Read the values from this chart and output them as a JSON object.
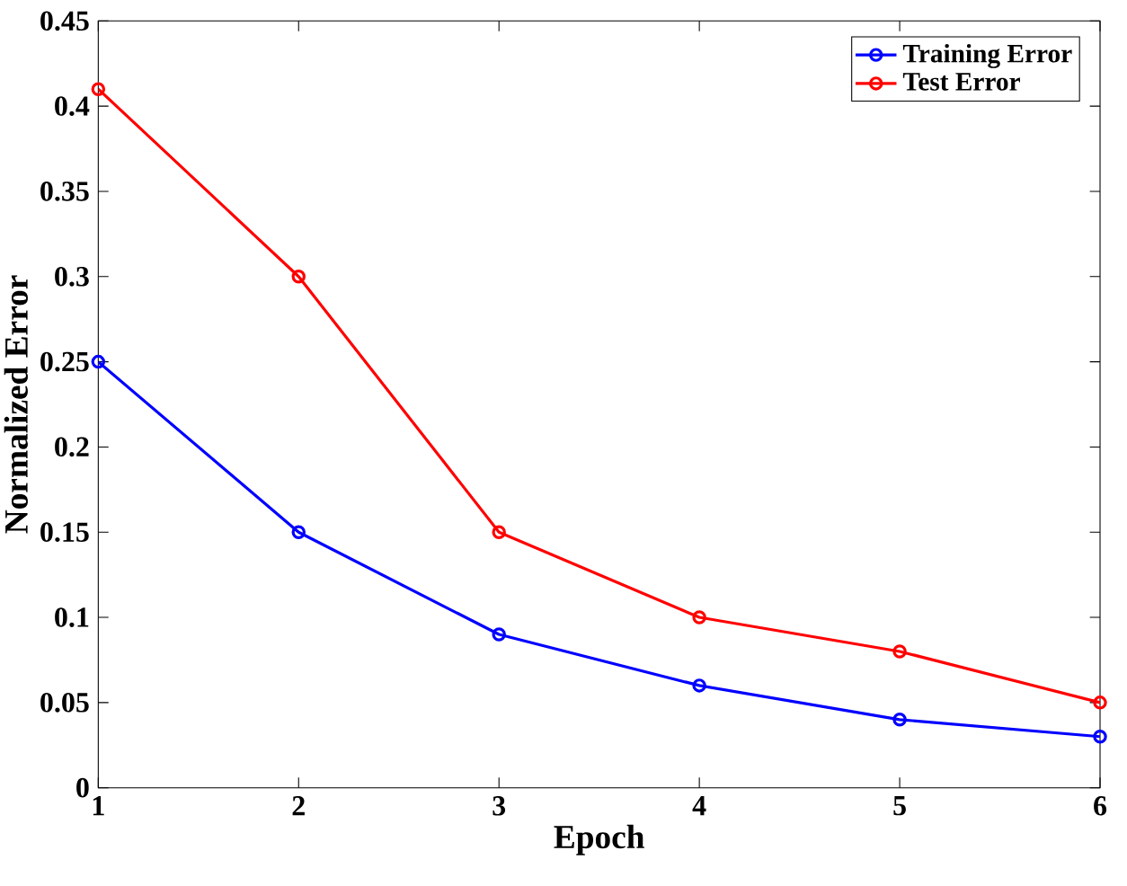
{
  "chart_data": {
    "type": "line",
    "xlabel": "Epoch",
    "ylabel": "Normalized Error",
    "x": [
      1,
      2,
      3,
      4,
      5,
      6
    ],
    "series": [
      {
        "name": "Training Error",
        "color": "#0000ff",
        "values": [
          0.25,
          0.15,
          0.09,
          0.06,
          0.04,
          0.03
        ]
      },
      {
        "name": "Test Error",
        "color": "#ff0000",
        "values": [
          0.41,
          0.3,
          0.15,
          0.1,
          0.08,
          0.05
        ]
      }
    ],
    "xlim": [
      1,
      6
    ],
    "ylim": [
      0,
      0.45
    ],
    "xticks": [
      1,
      2,
      3,
      4,
      5,
      6
    ],
    "yticks": [
      0,
      0.05,
      0.1,
      0.15,
      0.2,
      0.25,
      0.3,
      0.35,
      0.4,
      0.45
    ],
    "legend": "top right",
    "marker": "circle",
    "line_style": "solid",
    "grid": false
  }
}
